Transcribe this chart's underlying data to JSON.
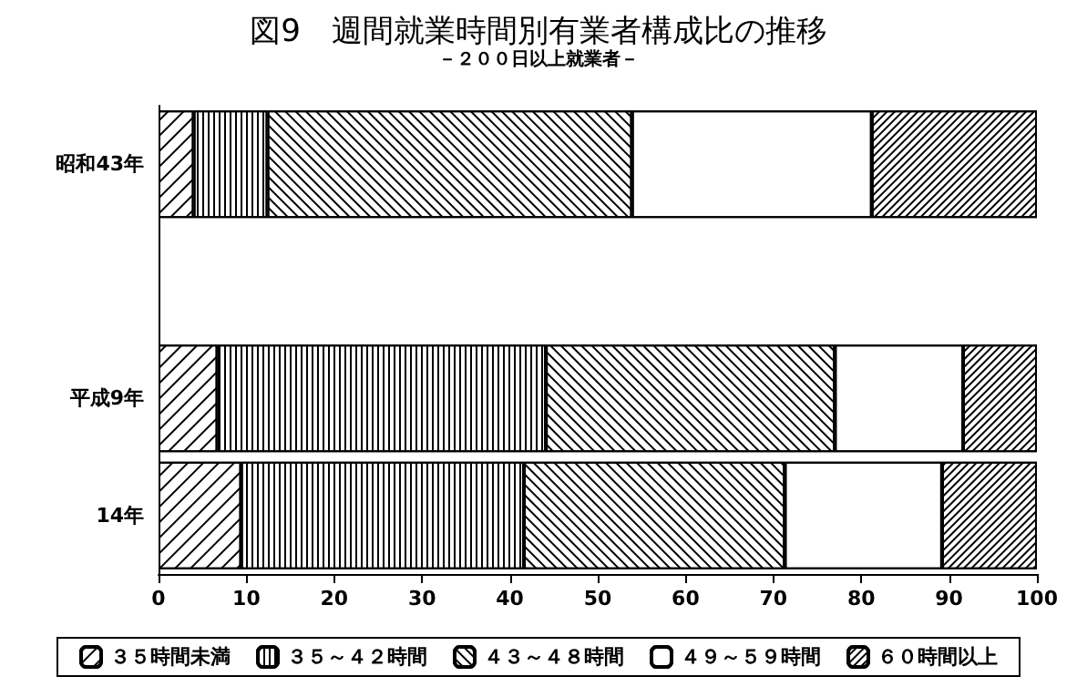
{
  "chart_data": {
    "type": "bar",
    "orientation": "horizontal",
    "stacked": true,
    "title": "図9　週間就業時間別有業者構成比の推移",
    "subtitle": "－２００日以上就業者－",
    "categories": [
      "昭和43年",
      null,
      "平成9年",
      "14年"
    ],
    "series": [
      {
        "name": "３５時間未満",
        "color": "#ffffff",
        "values": [
          4.0,
          null,
          6.7,
          9.4
        ]
      },
      {
        "name": "３５～４２時間",
        "color": "#ffffff",
        "values": [
          8.4,
          null,
          37.4,
          32.2
        ]
      },
      {
        "name": "４３～４８時間",
        "color": "#ffffff",
        "values": [
          41.5,
          null,
          32.9,
          29.7
        ]
      },
      {
        "name": "４９～５９時間",
        "color": "#ffffff",
        "values": [
          27.3,
          null,
          14.6,
          17.9
        ]
      },
      {
        "name": "６０時間以上",
        "color": "#ffffff",
        "values": [
          18.8,
          null,
          8.4,
          10.8
        ]
      }
    ],
    "xlim": [
      0,
      100
    ],
    "xticks": [
      0,
      10,
      20,
      30,
      40,
      50,
      60,
      70,
      80,
      90,
      100
    ],
    "grid": false,
    "legend": "bottom"
  }
}
